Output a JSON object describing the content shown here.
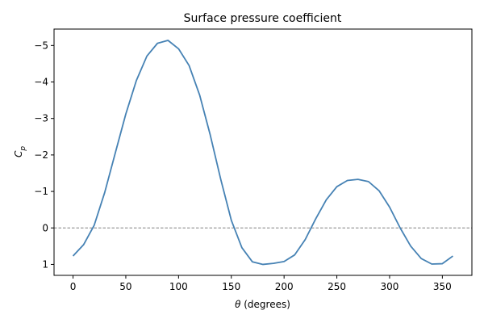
{
  "chart_data": {
    "type": "line",
    "title": "Surface pressure coefficient",
    "xlabel_symbol": "θ",
    "xlabel_rest": " (degrees)",
    "ylabel_main": "C",
    "ylabel_sub": "p",
    "xlim": [
      -18,
      378
    ],
    "ylim": [
      1.3,
      -5.45
    ],
    "y_inverted": true,
    "x_ticks": [
      {
        "value": 0,
        "label": "0"
      },
      {
        "value": 50,
        "label": "50"
      },
      {
        "value": 100,
        "label": "100"
      },
      {
        "value": 150,
        "label": "150"
      },
      {
        "value": 200,
        "label": "200"
      },
      {
        "value": 250,
        "label": "250"
      },
      {
        "value": 300,
        "label": "300"
      },
      {
        "value": 350,
        "label": "350"
      }
    ],
    "y_ticks": [
      {
        "value": -5,
        "label": "−5"
      },
      {
        "value": -4,
        "label": "−4"
      },
      {
        "value": -3,
        "label": "−3"
      },
      {
        "value": -2,
        "label": "−2"
      },
      {
        "value": -1,
        "label": "−1"
      },
      {
        "value": 0,
        "label": "0"
      },
      {
        "value": 1,
        "label": "1"
      }
    ],
    "reference_line": {
      "y": 0,
      "style": "dashed",
      "color": "#808080"
    },
    "grid": false,
    "series": [
      {
        "color": "#4682b4",
        "x": [
          0,
          10,
          20,
          30,
          40,
          50,
          60,
          70,
          80,
          90,
          100,
          110,
          120,
          130,
          140,
          150,
          160,
          170,
          180,
          190,
          200,
          210,
          220,
          230,
          240,
          250,
          260,
          270,
          280,
          290,
          300,
          310,
          320,
          330,
          340,
          350,
          360
        ],
        "y": [
          0.77,
          0.46,
          -0.07,
          -0.97,
          -2.05,
          -3.12,
          -4.04,
          -4.71,
          -5.06,
          -5.14,
          -4.91,
          -4.45,
          -3.64,
          -2.55,
          -1.33,
          -0.21,
          0.54,
          0.93,
          1.0,
          0.97,
          0.92,
          0.74,
          0.32,
          -0.25,
          -0.77,
          -1.13,
          -1.3,
          -1.33,
          -1.27,
          -1.02,
          -0.57,
          0.0,
          0.5,
          0.84,
          0.99,
          0.98,
          0.77
        ]
      }
    ]
  }
}
